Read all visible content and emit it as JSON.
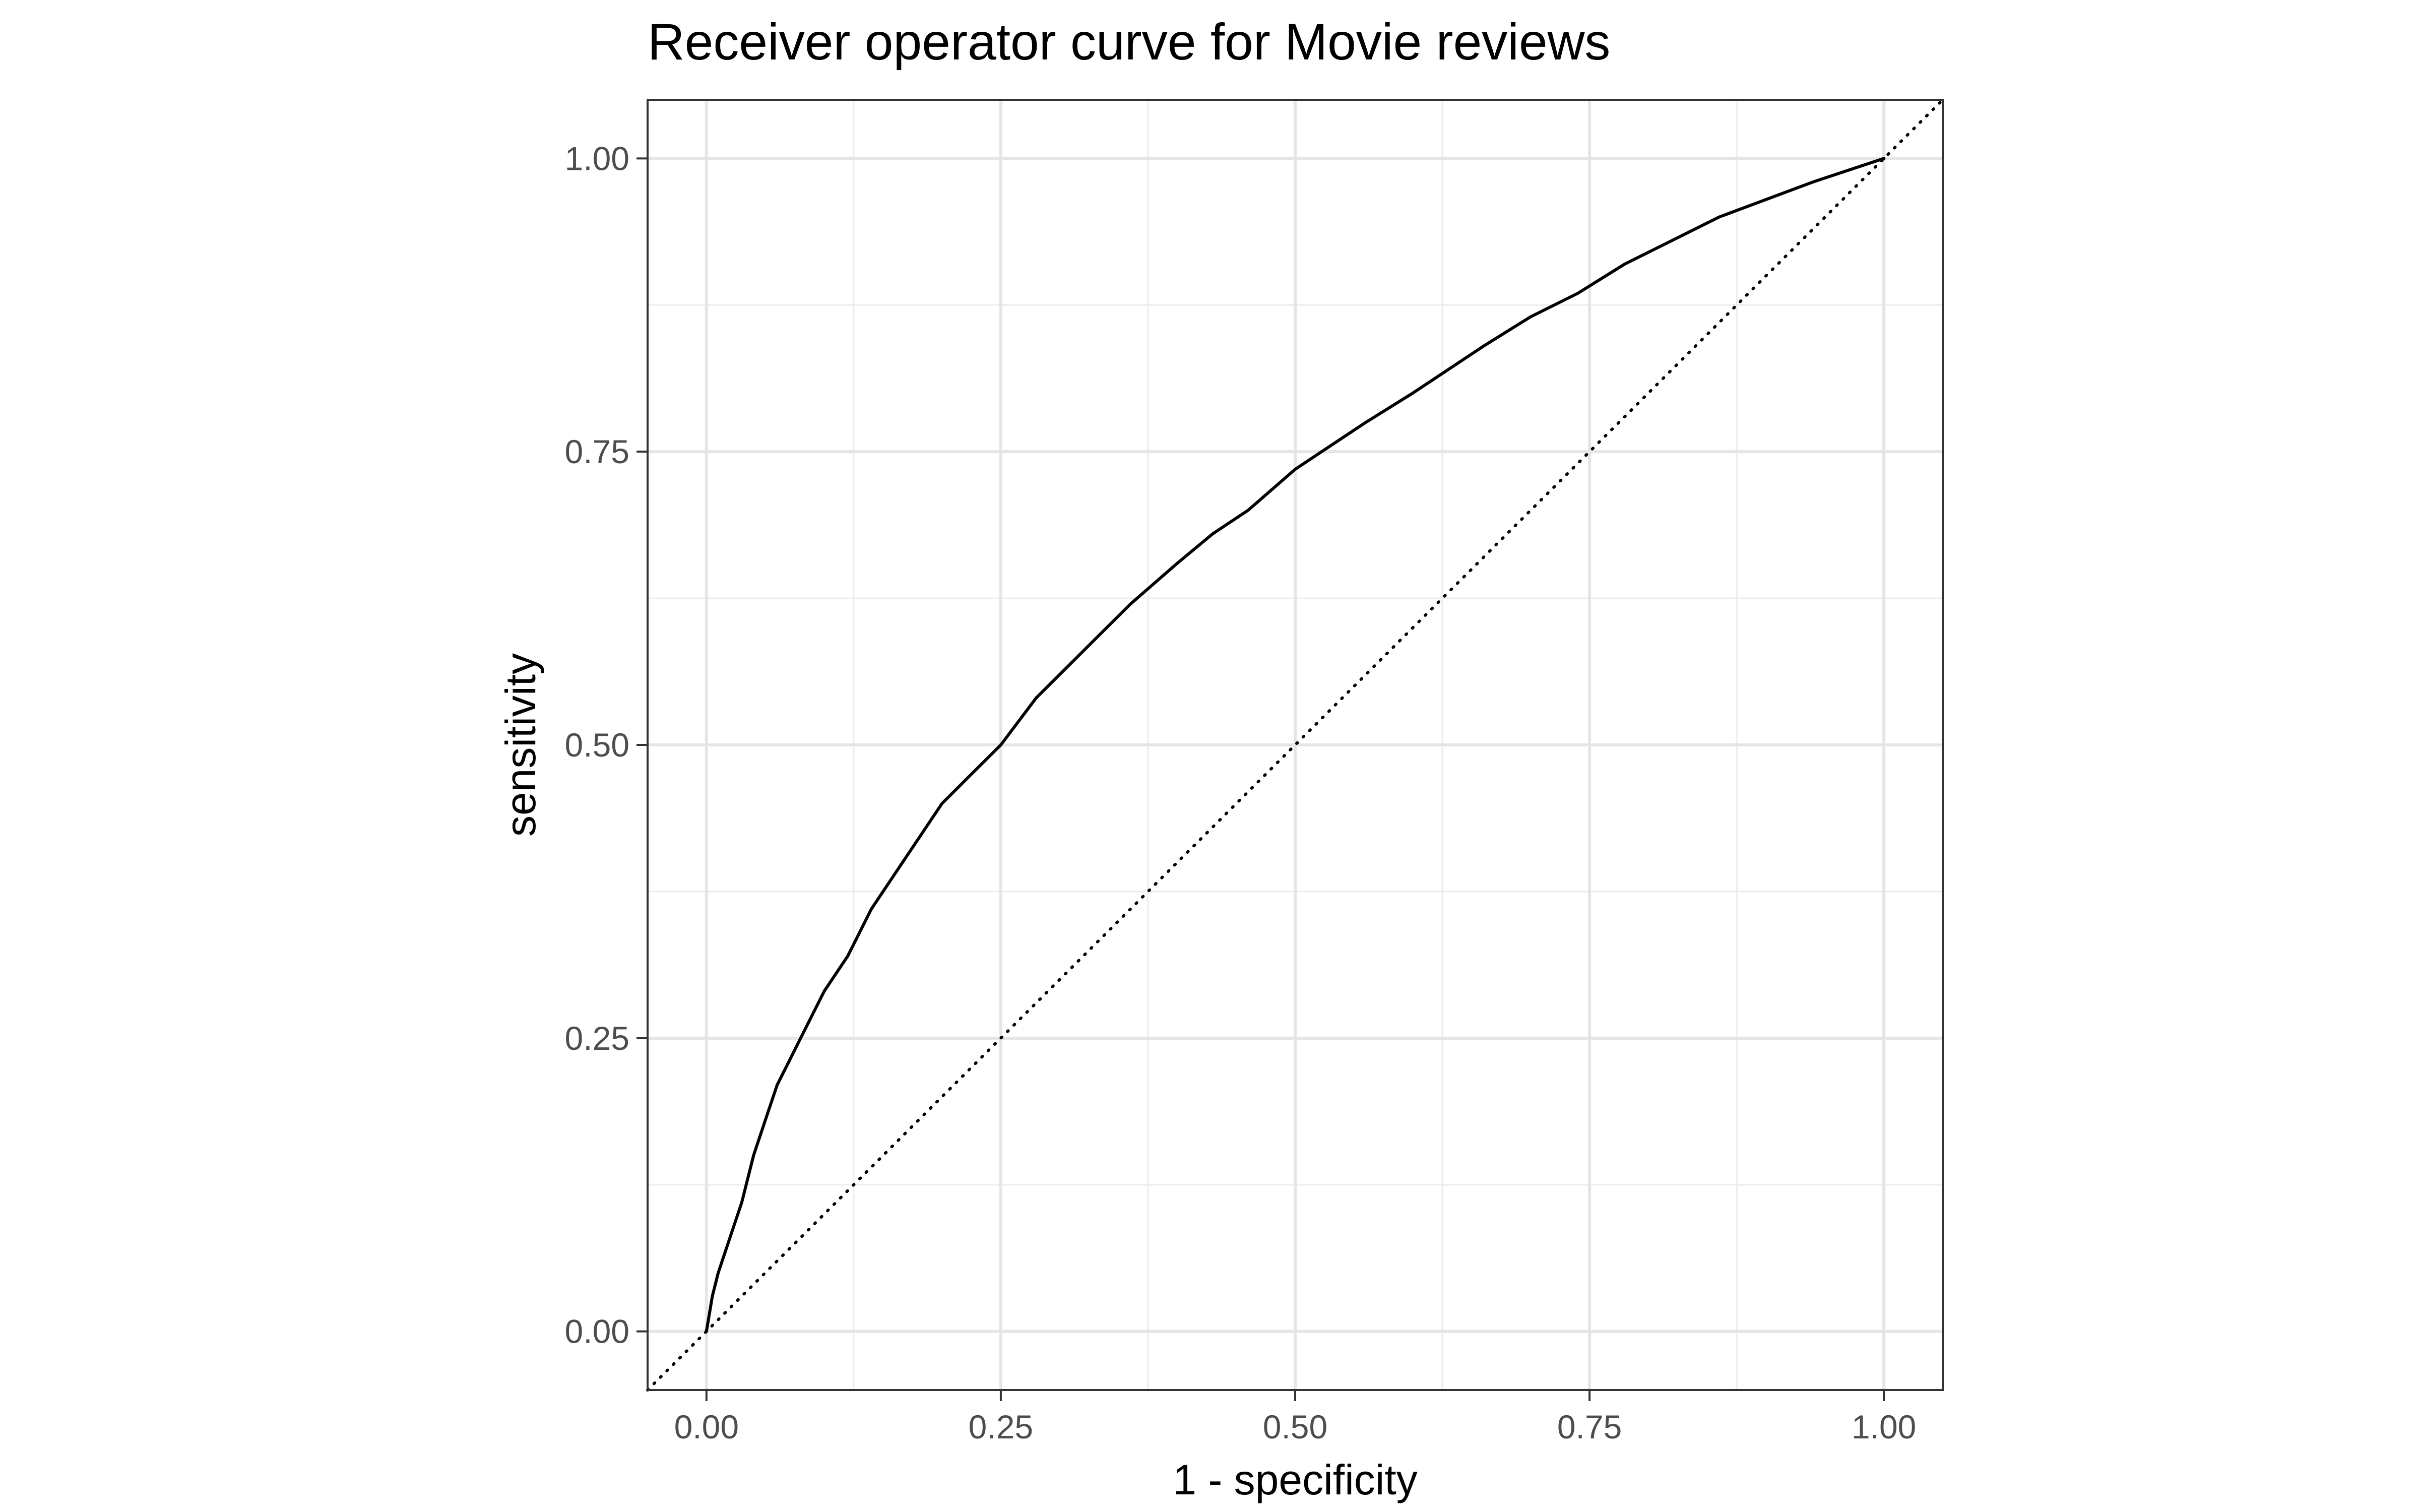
{
  "chart_data": {
    "type": "line",
    "title": "Receiver operator curve for Movie reviews",
    "xlabel": "1 - specificity",
    "ylabel": "sensitivity",
    "xlim": [
      -0.05,
      1.05
    ],
    "ylim": [
      -0.05,
      1.05
    ],
    "xticks": [
      0.0,
      0.25,
      0.5,
      0.75,
      1.0
    ],
    "yticks": [
      0.0,
      0.25,
      0.5,
      0.75,
      1.0
    ],
    "xtick_labels": [
      "0.00",
      "0.25",
      "0.50",
      "0.75",
      "1.00"
    ],
    "ytick_labels": [
      "0.00",
      "0.25",
      "0.50",
      "0.75",
      "1.00"
    ],
    "grid": true,
    "legend": "none",
    "series": [
      {
        "kind": "roc",
        "color": "#000000",
        "line_style": "solid",
        "x": [
          0.0,
          0.005,
          0.01,
          0.02,
          0.03,
          0.04,
          0.05,
          0.06,
          0.07,
          0.08,
          0.1,
          0.12,
          0.14,
          0.16,
          0.18,
          0.2,
          0.22,
          0.25,
          0.28,
          0.3,
          0.33,
          0.36,
          0.4,
          0.43,
          0.46,
          0.5,
          0.53,
          0.56,
          0.6,
          0.63,
          0.66,
          0.7,
          0.74,
          0.78,
          0.82,
          0.86,
          0.9,
          0.94,
          0.97,
          1.0
        ],
        "y": [
          0.0,
          0.03,
          0.05,
          0.08,
          0.11,
          0.15,
          0.18,
          0.21,
          0.23,
          0.25,
          0.29,
          0.32,
          0.36,
          0.39,
          0.42,
          0.45,
          0.47,
          0.5,
          0.54,
          0.56,
          0.59,
          0.62,
          0.655,
          0.68,
          0.7,
          0.735,
          0.755,
          0.775,
          0.8,
          0.82,
          0.84,
          0.865,
          0.885,
          0.91,
          0.93,
          0.95,
          0.965,
          0.98,
          0.99,
          1.0
        ]
      },
      {
        "kind": "reference",
        "color": "#000000",
        "line_style": "dotted",
        "x": [
          -0.05,
          1.05
        ],
        "y": [
          -0.05,
          1.05
        ]
      }
    ]
  }
}
